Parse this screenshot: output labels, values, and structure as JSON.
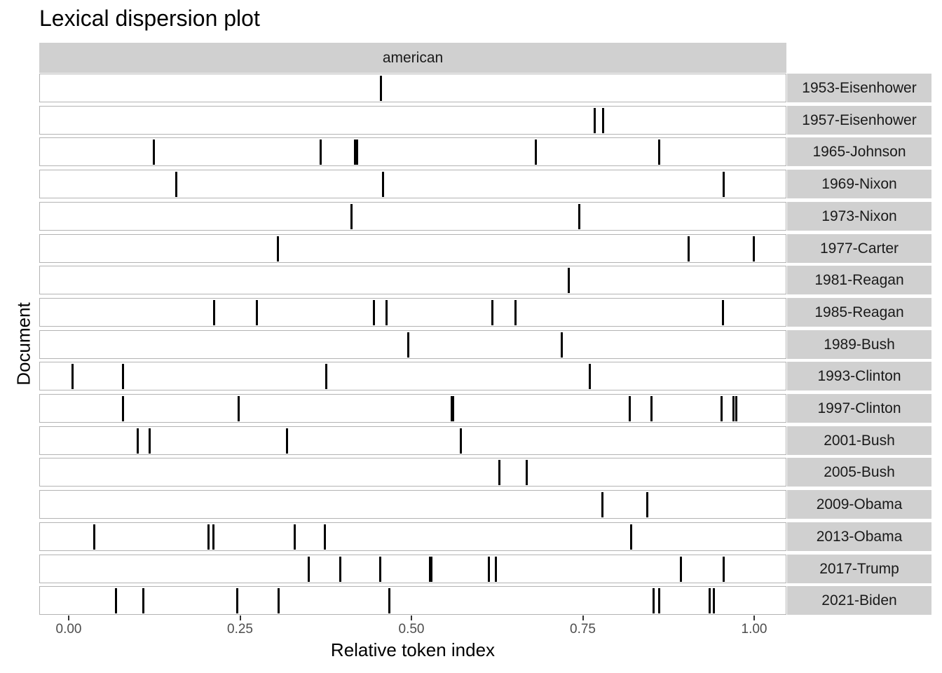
{
  "chart_data": {
    "type": "scatter",
    "subtype": "lexical-dispersion (vertical tick marks per document)",
    "title": "Lexical dispersion plot",
    "facet_label": "american",
    "xlabel": "Relative token index",
    "ylabel": "Document",
    "xlim": [
      0,
      1
    ],
    "x_ticks": [
      0.0,
      0.25,
      0.5,
      0.75,
      1.0
    ],
    "x_tick_labels": [
      "0.00",
      "0.25",
      "0.50",
      "0.75",
      "1.00"
    ],
    "grid": false,
    "legend": null,
    "documents": [
      {
        "name": "1953-Eisenhower",
        "positions": [
          0.456
        ]
      },
      {
        "name": "1957-Eisenhower",
        "positions": [
          0.767,
          0.78
        ]
      },
      {
        "name": "1965-Johnson",
        "positions": [
          0.124,
          0.368,
          0.418,
          0.421,
          0.681,
          0.861
        ]
      },
      {
        "name": "1969-Nixon",
        "positions": [
          0.157,
          0.459,
          0.956
        ]
      },
      {
        "name": "1973-Nixon",
        "positions": [
          0.413,
          0.745
        ]
      },
      {
        "name": "1977-Carter",
        "positions": [
          0.305,
          0.904,
          0.999
        ]
      },
      {
        "name": "1981-Reagan",
        "positions": [
          0.73
        ]
      },
      {
        "name": "1985-Reagan",
        "positions": [
          0.212,
          0.275,
          0.445,
          0.464,
          0.618,
          0.652,
          0.954
        ]
      },
      {
        "name": "1989-Bush",
        "positions": [
          0.495,
          0.719
        ]
      },
      {
        "name": "1993-Clinton",
        "positions": [
          0.006,
          0.079,
          0.376,
          0.76
        ]
      },
      {
        "name": "1997-Clinton",
        "positions": [
          0.079,
          0.248,
          0.559,
          0.561,
          0.819,
          0.85,
          0.952,
          0.97,
          0.974
        ]
      },
      {
        "name": "2001-Bush",
        "positions": [
          0.101,
          0.118,
          0.319,
          0.572
        ]
      },
      {
        "name": "2005-Bush",
        "positions": [
          0.628,
          0.668
        ]
      },
      {
        "name": "2009-Obama",
        "positions": [
          0.779,
          0.844
        ]
      },
      {
        "name": "2013-Obama",
        "positions": [
          0.037,
          0.204,
          0.211,
          0.33,
          0.374,
          0.821
        ]
      },
      {
        "name": "2017-Trump",
        "positions": [
          0.35,
          0.396,
          0.454,
          0.527,
          0.529,
          0.613,
          0.623,
          0.893,
          0.956
        ]
      },
      {
        "name": "2021-Biden",
        "positions": [
          0.069,
          0.109,
          0.246,
          0.306,
          0.468,
          0.853,
          0.861,
          0.935,
          0.941
        ]
      }
    ],
    "colors": {
      "mark": "#000000",
      "strip": "#d0d0d0",
      "panel_border": "#b3b3b3"
    }
  }
}
